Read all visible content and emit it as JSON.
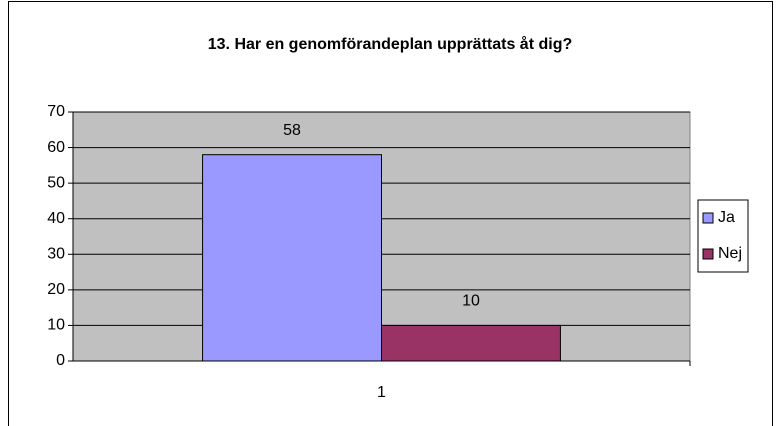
{
  "chart_data": {
    "type": "bar",
    "title": "13. Har en genomförandeplan upprättats åt dig?",
    "categories": [
      "1"
    ],
    "series": [
      {
        "name": "Ja",
        "color": "#9999ff",
        "values": [
          58
        ]
      },
      {
        "name": "Nej",
        "color": "#993366",
        "values": [
          10
        ]
      }
    ],
    "ylim": [
      0,
      70
    ],
    "yticks": [
      0,
      10,
      20,
      30,
      40,
      50,
      60,
      70
    ],
    "grid": true,
    "legend": "right"
  }
}
